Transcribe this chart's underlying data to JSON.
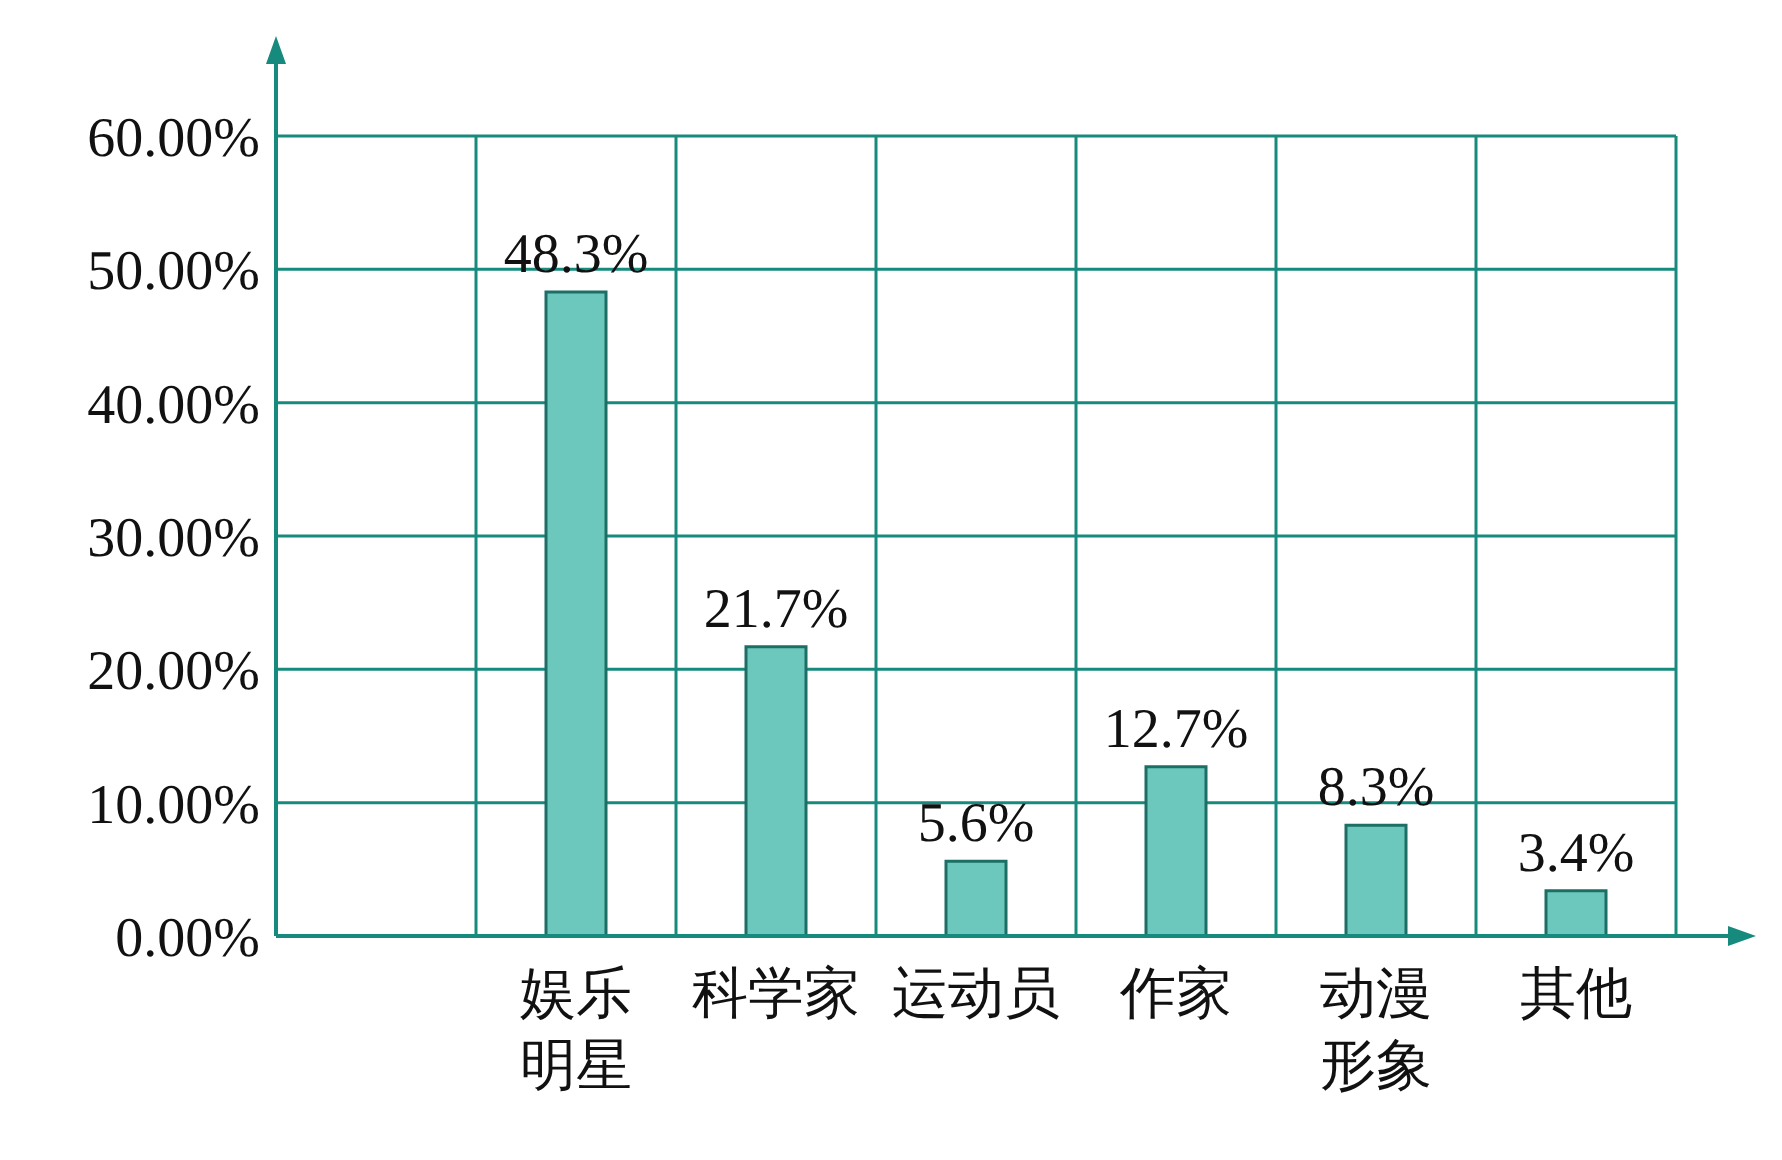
{
  "chart_data": {
    "type": "bar",
    "categories": [
      null,
      "娱乐明星",
      "科学家",
      "运动员",
      "作家",
      "动漫形象",
      "其他"
    ],
    "values": [
      null,
      48.3,
      21.7,
      5.6,
      12.7,
      8.3,
      3.4
    ],
    "value_labels": [
      null,
      "48.3%",
      "21.7%",
      "5.6%",
      "12.7%",
      "8.3%",
      "3.4%"
    ],
    "color": "#6cc8bc",
    "ylim": [
      0,
      60
    ],
    "yticks": [
      {
        "value": 0,
        "label": "0.00%"
      },
      {
        "value": 10,
        "label": "10.00%"
      },
      {
        "value": 20,
        "label": "20.00%"
      },
      {
        "value": 30,
        "label": "30.00%"
      },
      {
        "value": 40,
        "label": "40.00%"
      },
      {
        "value": 50,
        "label": "50.00%"
      },
      {
        "value": 60,
        "label": "60.00%"
      }
    ],
    "grid": true
  }
}
